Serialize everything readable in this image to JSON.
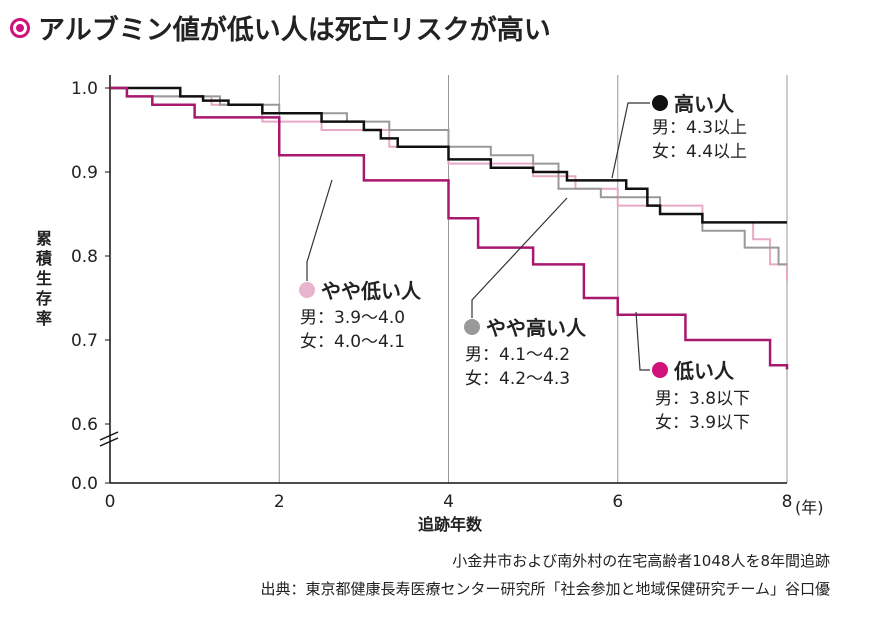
{
  "chart_data": {
    "type": "line",
    "title": "アルブミン値が低い人は死亡リスクが高い",
    "xlabel": "追跡年数",
    "xunit": "(年)",
    "ylabel": "累積生存率",
    "xlim": [
      0,
      8
    ],
    "ylim": [
      0.6,
      1.0
    ],
    "axis_break": true,
    "x_ticks": [
      "0",
      "2",
      "4",
      "6",
      "8"
    ],
    "y_ticks": [
      "1.0",
      "0.9",
      "0.8",
      "0.7",
      "0.6",
      "0.0"
    ],
    "grid": "vertical",
    "step": true,
    "series": [
      {
        "name": "高い人",
        "sub": [
          "男：4.3以上",
          "女：4.4以上"
        ],
        "color": "#111111",
        "x": [
          0,
          0.83,
          1.1,
          1.4,
          1.8,
          2.5,
          3.0,
          3.2,
          3.4,
          4.0,
          4.5,
          5.0,
          5.4,
          6.1,
          6.35,
          6.5,
          7.0,
          8
        ],
        "y": [
          1.0,
          0.99,
          0.985,
          0.98,
          0.97,
          0.96,
          0.95,
          0.94,
          0.93,
          0.915,
          0.905,
          0.9,
          0.89,
          0.88,
          0.86,
          0.85,
          0.84,
          0.84
        ]
      },
      {
        "name": "やや高い人",
        "sub": [
          "男：4.1～4.2",
          "女：4.2～4.3"
        ],
        "color": "#999999",
        "x": [
          0,
          0.2,
          1.3,
          2.0,
          2.8,
          3.3,
          4.0,
          4.5,
          5.0,
          5.3,
          5.8,
          6.5,
          7.0,
          7.5,
          7.9,
          8
        ],
        "y": [
          1.0,
          0.99,
          0.98,
          0.97,
          0.96,
          0.95,
          0.93,
          0.92,
          0.91,
          0.88,
          0.87,
          0.85,
          0.83,
          0.81,
          0.79,
          0.79
        ]
      },
      {
        "name": "やや低い人",
        "sub": [
          "男：3.9～4.0",
          "女：4.0～4.1"
        ],
        "color": "#e6a9c6",
        "x": [
          0,
          0.2,
          1.2,
          1.8,
          2.5,
          3.3,
          4.0,
          5.0,
          5.5,
          6.0,
          7.0,
          7.6,
          7.8,
          8
        ],
        "y": [
          1.0,
          0.99,
          0.98,
          0.96,
          0.95,
          0.93,
          0.91,
          0.895,
          0.88,
          0.86,
          0.84,
          0.82,
          0.79,
          0.77
        ]
      },
      {
        "name": "低い人",
        "sub": [
          "男：3.8以下",
          "女：3.9以下"
        ],
        "color": "#a8186e",
        "x": [
          0,
          0.2,
          0.5,
          1.0,
          2.0,
          3.0,
          4.0,
          4.35,
          5.0,
          5.6,
          6.0,
          6.8,
          7.8,
          8
        ],
        "y": [
          1.0,
          0.99,
          0.98,
          0.965,
          0.92,
          0.89,
          0.845,
          0.81,
          0.79,
          0.75,
          0.73,
          0.7,
          0.67,
          0.665
        ]
      }
    ],
    "legend_dot_colors": [
      "#111111",
      "#999999",
      "#e8b3cc",
      "#d0127a"
    ]
  },
  "notes": [
    "小金井市および南外村の在宅高齢者1048人を8年間追跡",
    "出典：東京都健康長寿医療センター研究所「社会参加と地域保健研究チーム」谷口優"
  ],
  "colors": {
    "accent": "#d0127a"
  }
}
